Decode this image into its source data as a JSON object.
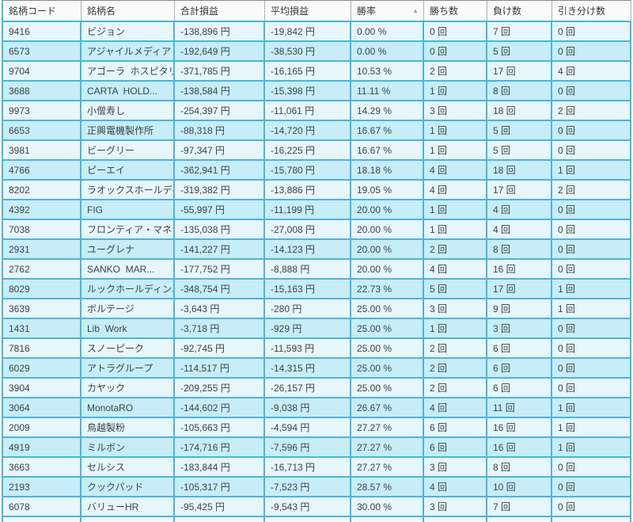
{
  "icons": {
    "sort_ascending": "▲"
  },
  "colors": {
    "border_blue": "#4fb3d9",
    "row_light": "#e6f6fb",
    "row_cyan": "#c6edf8",
    "header_bg": "#fafafa",
    "header_text": "#35393b",
    "cell_text": "#3c4548",
    "sort_arrow": "#9aa2a8"
  },
  "table": {
    "columns": [
      {
        "key": "code",
        "label": "銘柄コード",
        "sorted": false
      },
      {
        "key": "name",
        "label": "銘柄名",
        "sorted": false
      },
      {
        "key": "total",
        "label": "合計損益",
        "sorted": false
      },
      {
        "key": "avg",
        "label": "平均損益",
        "sorted": false
      },
      {
        "key": "winrate",
        "label": "勝率",
        "sorted": true,
        "sort_direction": "asc"
      },
      {
        "key": "wins",
        "label": "勝ち数",
        "sorted": false
      },
      {
        "key": "losses",
        "label": "負け数",
        "sorted": false
      },
      {
        "key": "draws",
        "label": "引き分け数",
        "sorted": false
      }
    ],
    "rows": [
      [
        "9416",
        "ビジョン",
        "-138,896 円",
        "-19,842 円",
        "0.00 %",
        "0 回",
        "7 回",
        "0 回"
      ],
      [
        "6573",
        "アジャイルメディア・...",
        "-192,649 円",
        "-38,530 円",
        "0.00 %",
        "0 回",
        "5 回",
        "0 回"
      ],
      [
        "9704",
        "アゴーラ  ホスピタリ...",
        "-371,785 円",
        "-16,165 円",
        "10.53 %",
        "2 回",
        "17 回",
        "4 回"
      ],
      [
        "3688",
        "CARTA  HOLD...",
        "-138,584 円",
        "-15,398 円",
        "11.11 %",
        "1 回",
        "8 回",
        "0 回"
      ],
      [
        "9973",
        "小僧寿し",
        "-254,397 円",
        "-11,061 円",
        "14.29 %",
        "3 回",
        "18 回",
        "2 回"
      ],
      [
        "6653",
        "正興電機製作所",
        "-88,318 円",
        "-14,720 円",
        "16.67 %",
        "1 回",
        "5 回",
        "0 回"
      ],
      [
        "3981",
        "ビーグリー",
        "-97,347 円",
        "-16,225 円",
        "16.67 %",
        "1 回",
        "5 回",
        "0 回"
      ],
      [
        "4766",
        "ピーエイ",
        "-362,941 円",
        "-15,780 円",
        "18.18 %",
        "4 回",
        "18 回",
        "1 回"
      ],
      [
        "8202",
        "ラオックスホールディ...",
        "-319,382 円",
        "-13,886 円",
        "19.05 %",
        "4 回",
        "17 回",
        "2 回"
      ],
      [
        "4392",
        "FIG",
        "-55,997 円",
        "-11,199 円",
        "20.00 %",
        "1 回",
        "4 回",
        "0 回"
      ],
      [
        "7038",
        "フロンティア・マネジ...",
        "-135,038 円",
        "-27,008 円",
        "20.00 %",
        "1 回",
        "4 回",
        "0 回"
      ],
      [
        "2931",
        "ユーグレナ",
        "-141,227 円",
        "-14,123 円",
        "20.00 %",
        "2 回",
        "8 回",
        "0 回"
      ],
      [
        "2762",
        "SANKO  MAR...",
        "-177,752 円",
        "-8,888 円",
        "20.00 %",
        "4 回",
        "16 回",
        "0 回"
      ],
      [
        "8029",
        "ルックホールディン...",
        "-348,754 円",
        "-15,163 円",
        "22.73 %",
        "5 回",
        "17 回",
        "1 回"
      ],
      [
        "3639",
        "ボルテージ",
        "-3,643 円",
        "-280 円",
        "25.00 %",
        "3 回",
        "9 回",
        "1 回"
      ],
      [
        "1431",
        "Lib  Work",
        "-3,718 円",
        "-929 円",
        "25.00 %",
        "1 回",
        "3 回",
        "0 回"
      ],
      [
        "7816",
        "スノーピーク",
        "-92,745 円",
        "-11,593 円",
        "25.00 %",
        "2 回",
        "6 回",
        "0 回"
      ],
      [
        "6029",
        "アトラグループ",
        "-114,517 円",
        "-14,315 円",
        "25.00 %",
        "2 回",
        "6 回",
        "0 回"
      ],
      [
        "3904",
        "カヤック",
        "-209,255 円",
        "-26,157 円",
        "25.00 %",
        "2 回",
        "6 回",
        "0 回"
      ],
      [
        "3064",
        "MonotaRO",
        "-144,602 円",
        "-9,038 円",
        "26.67 %",
        "4 回",
        "11 回",
        "1 回"
      ],
      [
        "2009",
        "鳥越製粉",
        "-105,663 円",
        "-4,594 円",
        "27.27 %",
        "6 回",
        "16 回",
        "1 回"
      ],
      [
        "4919",
        "ミルボン",
        "-174,716 円",
        "-7,596 円",
        "27.27 %",
        "6 回",
        "16 回",
        "1 回"
      ],
      [
        "3663",
        "セルシス",
        "-183,844 円",
        "-16,713 円",
        "27.27 %",
        "3 回",
        "8 回",
        "0 回"
      ],
      [
        "2193",
        "クックパッド",
        "-105,317 円",
        "-7,523 円",
        "28.57 %",
        "4 回",
        "10 回",
        "0 回"
      ],
      [
        "6078",
        "バリューHR",
        "-95,425 円",
        "-9,543 円",
        "30.00 %",
        "3 回",
        "7 回",
        "0 回"
      ]
    ]
  }
}
